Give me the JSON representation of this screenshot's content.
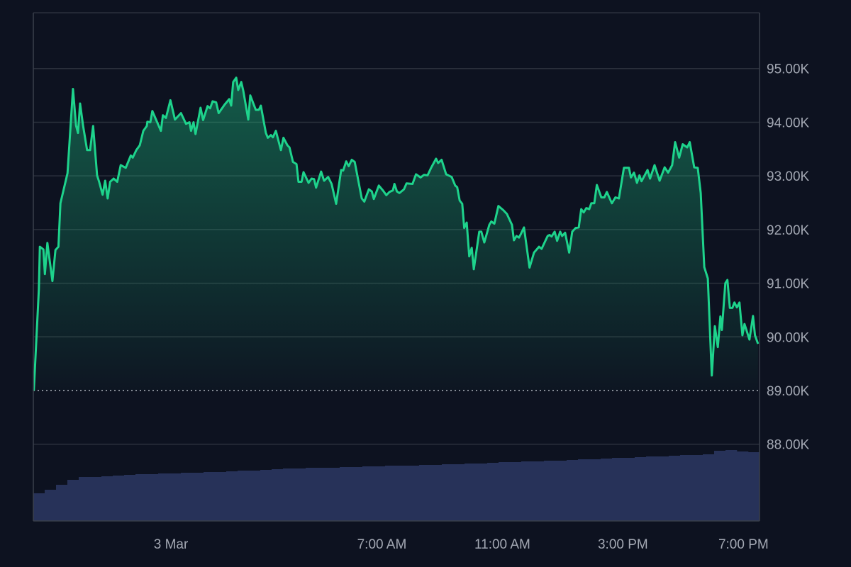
{
  "chart_data": {
    "type": "area",
    "title": "",
    "xlabel": "",
    "ylabel": "",
    "xlim": [
      "Mar 2 19:26",
      "Mar 3 19:32"
    ],
    "ylim": [
      86570,
      96040
    ],
    "grid": true,
    "legend": "none",
    "baseline": 89000,
    "colors": {
      "background": "#0d1220",
      "line": "#1ed38c",
      "grid": "#2b303c",
      "axis": "#3a3f4b",
      "baseline": "#d8dbe2",
      "volume": "#273259",
      "tick_text": "#a3a8b3"
    },
    "y_ticks": [
      {
        "value": 95000,
        "label": "95.00K"
      },
      {
        "value": 94000,
        "label": "94.00K"
      },
      {
        "value": 93000,
        "label": "93.00K"
      },
      {
        "value": 92000,
        "label": "92.00K"
      },
      {
        "value": 91000,
        "label": "91.00K"
      },
      {
        "value": 90000,
        "label": "90.00K"
      },
      {
        "value": 89000,
        "label": "89.00K"
      },
      {
        "value": 88000,
        "label": "88.00K"
      }
    ],
    "x_ticks": [
      {
        "value": "Mar 3 00:00",
        "label": "3 Mar"
      },
      {
        "value": "Mar 3 07:00",
        "label": "7:00 AM"
      },
      {
        "value": "Mar 3 11:00",
        "label": "11:00 AM"
      },
      {
        "value": "Mar 3 15:00",
        "label": "3:00 PM"
      },
      {
        "value": "Mar 3 19:00",
        "label": "7:00 PM"
      }
    ],
    "series": [
      {
        "x": [
          "Mar 2 19:27",
          "Mar 2 19:37",
          "Mar 2 19:39",
          "Mar 2 19:46",
          "Mar 2 19:49",
          "Mar 2 19:54",
          "Mar 2 20:04",
          "Mar 2 20:10",
          "Mar 2 20:16",
          "Mar 2 20:20",
          "Mar 2 20:34",
          "Mar 2 20:45",
          "Mar 2 20:51",
          "Mar 2 20:55",
          "Mar 2 20:59",
          "Mar 2 21:05",
          "Mar 2 21:13",
          "Mar 2 21:19",
          "Mar 2 21:25",
          "Mar 2 21:33",
          "Mar 2 21:37",
          "Mar 2 21:44",
          "Mar 2 21:49",
          "Mar 2 21:54",
          "Mar 2 21:59",
          "Mar 2 22:06",
          "Mar 2 22:13",
          "Mar 2 22:20",
          "Mar 2 22:30",
          "Mar 2 22:40",
          "Mar 2 22:44",
          "Mar 2 22:51",
          "Mar 2 22:58",
          "Mar 2 23:05",
          "Mar 2 23:12",
          "Mar 2 23:13",
          "Mar 2 23:19",
          "Mar 2 23:23",
          "Mar 2 23:40",
          "Mar 2 23:44",
          "Mar 2 23:50",
          "Mar 2 23:59",
          "Mar 3 00:08",
          "Mar 3 00:20",
          "Mar 3 00:30",
          "Mar 3 00:37",
          "Mar 3 00:40",
          "Mar 3 00:45",
          "Mar 3 00:49",
          "Mar 3 00:59",
          "Mar 3 01:04",
          "Mar 3 01:13",
          "Mar 3 01:18",
          "Mar 3 01:23",
          "Mar 3 01:30",
          "Mar 3 01:35",
          "Mar 3 01:47",
          "Mar 3 01:56",
          "Mar 3 02:00",
          "Mar 3 02:04",
          "Mar 3 02:10",
          "Mar 3 02:14",
          "Mar 3 02:20",
          "Mar 3 02:24",
          "Mar 3 02:34",
          "Mar 3 02:38",
          "Mar 3 02:49",
          "Mar 3 02:55",
          "Mar 3 02:59",
          "Mar 3 03:09",
          "Mar 3 03:13",
          "Mar 3 03:19",
          "Mar 3 03:23",
          "Mar 3 03:29",
          "Mar 3 03:39",
          "Mar 3 03:44",
          "Mar 3 03:52",
          "Mar 3 03:56",
          "Mar 3 04:03",
          "Mar 3 04:10",
          "Mar 3 04:14",
          "Mar 3 04:20",
          "Mar 3 04:24",
          "Mar 3 04:34",
          "Mar 3 04:40",
          "Mar 3 04:45",
          "Mar 3 04:49",
          "Mar 3 04:59",
          "Mar 3 05:05",
          "Mar 3 05:13",
          "Mar 3 05:20",
          "Mar 3 05:29",
          "Mar 3 05:39",
          "Mar 3 05:43",
          "Mar 3 05:49",
          "Mar 3 05:54",
          "Mar 3 06:00",
          "Mar 3 06:06",
          "Mar 3 06:20",
          "Mar 3 06:25",
          "Mar 3 06:34",
          "Mar 3 06:40",
          "Mar 3 06:44",
          "Mar 3 06:54",
          "Mar 3 07:02",
          "Mar 3 07:09",
          "Mar 3 07:15",
          "Mar 3 07:22",
          "Mar 3 07:25",
          "Mar 3 07:30",
          "Mar 3 07:35",
          "Mar 3 07:44",
          "Mar 3 07:49",
          "Mar 3 08:01",
          "Mar 3 08:08",
          "Mar 3 08:17",
          "Mar 3 08:24",
          "Mar 3 08:31",
          "Mar 3 08:38",
          "Mar 3 08:48",
          "Mar 3 08:52",
          "Mar 3 08:59",
          "Mar 3 09:08",
          "Mar 3 09:19",
          "Mar 3 09:26",
          "Mar 3 09:30",
          "Mar 3 09:35",
          "Mar 3 09:40",
          "Mar 3 09:44",
          "Mar 3 09:49",
          "Mar 3 09:54",
          "Mar 3 09:59",
          "Mar 3 10:03",
          "Mar 3 10:14",
          "Mar 3 10:18",
          "Mar 3 10:24",
          "Mar 3 10:34",
          "Mar 3 10:38",
          "Mar 3 10:44",
          "Mar 3 10:52",
          "Mar 3 11:02",
          "Mar 3 11:09",
          "Mar 3 11:19",
          "Mar 3 11:23",
          "Mar 3 11:28",
          "Mar 3 11:33",
          "Mar 3 11:37",
          "Mar 3 11:43",
          "Mar 3 11:54",
          "Mar 3 12:03",
          "Mar 3 12:13",
          "Mar 3 12:18",
          "Mar 3 12:30",
          "Mar 3 12:34",
          "Mar 3 12:38",
          "Mar 3 12:44",
          "Mar 3 12:49",
          "Mar 3 12:55",
          "Mar 3 12:59",
          "Mar 3 13:05",
          "Mar 3 13:13",
          "Mar 3 13:19",
          "Mar 3 13:26",
          "Mar 3 13:32",
          "Mar 3 13:37",
          "Mar 3 13:42",
          "Mar 3 13:47",
          "Mar 3 13:53",
          "Mar 3 13:57",
          "Mar 3 14:03",
          "Mar 3 14:08",
          "Mar 3 14:17",
          "Mar 3 14:23",
          "Mar 3 14:28",
          "Mar 3 14:38",
          "Mar 3 14:45",
          "Mar 3 14:52",
          "Mar 3 15:02",
          "Mar 3 15:12",
          "Mar 3 15:16",
          "Mar 3 15:22",
          "Mar 3 15:28",
          "Mar 3 15:33",
          "Mar 3 15:37",
          "Mar 3 15:49",
          "Mar 3 15:54",
          "Mar 3 16:03",
          "Mar 3 16:13",
          "Mar 3 16:23",
          "Mar 3 16:30",
          "Mar 3 16:38",
          "Mar 3 16:44",
          "Mar 3 16:52",
          "Mar 3 16:59",
          "Mar 3 17:08",
          "Mar 3 17:13",
          "Mar 3 17:22",
          "Mar 3 17:29",
          "Mar 3 17:35",
          "Mar 3 17:42",
          "Mar 3 17:49",
          "Mar 3 17:57",
          "Mar 3 18:03",
          "Mar 3 18:09",
          "Mar 3 18:14",
          "Mar 3 18:17",
          "Mar 3 18:24",
          "Mar 3 18:28",
          "Mar 3 18:33",
          "Mar 3 18:38",
          "Mar 3 18:42",
          "Mar 3 18:47",
          "Mar 3 18:52",
          "Mar 3 18:58",
          "Mar 3 19:02",
          "Mar 3 19:12",
          "Mar 3 19:19",
          "Mar 3 19:23",
          "Mar 3 19:29"
        ],
        "y": [
          89000,
          90890,
          91680,
          91630,
          91170,
          91750,
          91040,
          91620,
          91680,
          92490,
          93050,
          94620,
          93940,
          93800,
          94350,
          93940,
          93480,
          93480,
          93930,
          93010,
          92890,
          92650,
          92910,
          92580,
          92890,
          92950,
          92890,
          93200,
          93150,
          93380,
          93340,
          93480,
          93570,
          93840,
          93930,
          94010,
          94000,
          94210,
          93840,
          94130,
          94080,
          94410,
          94050,
          94170,
          93970,
          94000,
          93840,
          94000,
          93780,
          94270,
          94040,
          94300,
          94260,
          94390,
          94370,
          94170,
          94330,
          94430,
          94310,
          94750,
          94830,
          94600,
          94750,
          94590,
          94050,
          94500,
          94230,
          94230,
          94310,
          93800,
          93710,
          93760,
          93720,
          93840,
          93480,
          93710,
          93570,
          93530,
          93260,
          93220,
          92890,
          92890,
          93070,
          92870,
          92950,
          92940,
          92780,
          93080,
          92910,
          92980,
          92850,
          92480,
          93110,
          93100,
          93270,
          93180,
          93300,
          93260,
          92580,
          92520,
          92750,
          92710,
          92570,
          92820,
          92730,
          92640,
          92700,
          92730,
          92850,
          92710,
          92680,
          92750,
          92860,
          92850,
          93030,
          92970,
          93020,
          93010,
          93150,
          93320,
          93240,
          93300,
          93030,
          92980,
          92820,
          92790,
          92540,
          92480,
          92030,
          92130,
          91500,
          91660,
          91260,
          91960,
          91960,
          91760,
          92090,
          92150,
          92110,
          92440,
          92360,
          92290,
          92090,
          91800,
          91880,
          91850,
          91920,
          92040,
          91290,
          91570,
          91680,
          91640,
          91880,
          91900,
          91870,
          91960,
          91790,
          91960,
          91880,
          91940,
          91570,
          91960,
          92030,
          92040,
          92380,
          92320,
          92400,
          92380,
          92490,
          92490,
          92830,
          92600,
          92600,
          92700,
          92490,
          92600,
          92580,
          93150,
          93150,
          92970,
          93060,
          92870,
          93010,
          92900,
          93110,
          92950,
          93200,
          92910,
          93160,
          93060,
          93200,
          93630,
          93340,
          93590,
          93530,
          93630,
          93160,
          93150,
          92680,
          91300,
          91090,
          89280,
          90200,
          89810,
          90380,
          90130,
          91000,
          91060,
          90540,
          90540,
          90640,
          90550,
          90640,
          90030,
          90240,
          89950,
          90390,
          90030,
          89870
        ]
      }
    ],
    "volume_relative": [
      39,
      44,
      51,
      58,
      62,
      62,
      63,
      64,
      65,
      66,
      66,
      67,
      67,
      68,
      68,
      69,
      69,
      70,
      71,
      71,
      72,
      73,
      74,
      74,
      75,
      75,
      75,
      76,
      76,
      77,
      77,
      78,
      78,
      78,
      79,
      79,
      80,
      80,
      81,
      81,
      82,
      83,
      83,
      84,
      84,
      85,
      85,
      86,
      87,
      87,
      88,
      89,
      89,
      90,
      91,
      91,
      92,
      93,
      93,
      94,
      99,
      100,
      98,
      97
    ]
  }
}
